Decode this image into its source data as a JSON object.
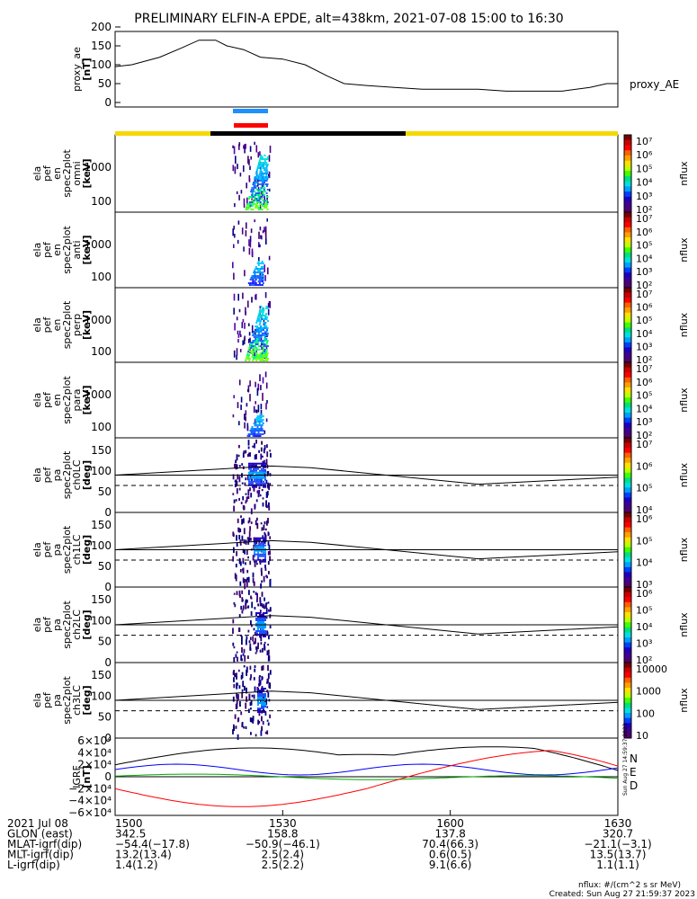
{
  "title": "PRELIMINARY ELFIN-A EPDE, alt=438km, 2021-07-08 15:00 to 16:30",
  "chart_data": [
    {
      "type": "line",
      "id": "proxy_ae",
      "ylabel": [
        "proxy_ae",
        "[nT]"
      ],
      "legend": "proxy_AE",
      "yticks": [
        "200",
        "150",
        "100",
        "50",
        "0"
      ],
      "ylim": [
        0,
        200
      ],
      "x_minutes": [
        0,
        3,
        8,
        12,
        15,
        18,
        20,
        23,
        26,
        30,
        34,
        38,
        41,
        45,
        50,
        55,
        60,
        65,
        70,
        75,
        80,
        85,
        88,
        90
      ],
      "values": [
        95,
        100,
        120,
        145,
        165,
        165,
        150,
        140,
        120,
        115,
        100,
        70,
        50,
        45,
        40,
        35,
        35,
        35,
        30,
        30,
        30,
        40,
        50,
        50
      ]
    },
    {
      "type": "heatmap",
      "id": "spec_omni",
      "ylabel": [
        "ela",
        "pef",
        "en",
        "spec2plot",
        "omni",
        "[keV]"
      ],
      "yticks": [
        "1000",
        "100"
      ],
      "cbar": {
        "label": "nflux",
        "ticks": [
          "10⁷",
          "10⁶",
          "10⁵",
          "10⁴",
          "10³",
          "10²"
        ]
      }
    },
    {
      "type": "heatmap",
      "id": "spec_anti",
      "ylabel": [
        "ela",
        "pef",
        "en",
        "spec2plot",
        "anti",
        "[keV]"
      ],
      "yticks": [
        "1000",
        "100"
      ],
      "cbar": {
        "label": "nflux",
        "ticks": [
          "10⁷",
          "10⁶",
          "10⁵",
          "10⁴",
          "10³",
          "10²"
        ]
      }
    },
    {
      "type": "heatmap",
      "id": "spec_perp",
      "ylabel": [
        "ela",
        "pef",
        "en",
        "spec2plot",
        "perp",
        "[keV]"
      ],
      "yticks": [
        "1000",
        "100"
      ],
      "cbar": {
        "label": "nflux",
        "ticks": [
          "10⁷",
          "10⁶",
          "10⁵",
          "10⁴",
          "10³",
          "10²"
        ]
      }
    },
    {
      "type": "heatmap",
      "id": "spec_para",
      "ylabel": [
        "ela",
        "pef",
        "en",
        "spec2plot",
        "para",
        "[keV]"
      ],
      "yticks": [
        "1000",
        "100"
      ],
      "cbar": {
        "label": "nflux",
        "ticks": [
          "10⁷",
          "10⁶",
          "10⁵",
          "10⁴",
          "10³",
          "10²"
        ]
      }
    },
    {
      "type": "heatmap",
      "id": "pa_ch0",
      "ylabel": [
        "ela",
        "pef",
        "pa",
        "spec2plot",
        "ch0LC",
        "[deg]"
      ],
      "yticks": [
        "150",
        "100",
        "50",
        "0"
      ],
      "ylim": [
        0,
        180
      ],
      "cbar": {
        "label": "nflux",
        "ticks": [
          "10⁷",
          "10⁶",
          "10⁵",
          "10⁴"
        ]
      }
    },
    {
      "type": "heatmap",
      "id": "pa_ch1",
      "ylabel": [
        "ela",
        "pef",
        "pa",
        "spec2plot",
        "ch1LC",
        "[deg]"
      ],
      "yticks": [
        "150",
        "100",
        "50",
        "0"
      ],
      "ylim": [
        0,
        180
      ],
      "cbar": {
        "label": "nflux",
        "ticks": [
          "10⁶",
          "10⁵",
          "10⁴",
          "10³"
        ]
      }
    },
    {
      "type": "heatmap",
      "id": "pa_ch2",
      "ylabel": [
        "ela",
        "pef",
        "pa",
        "spec2plot",
        "ch2LC",
        "[deg]"
      ],
      "yticks": [
        "150",
        "100",
        "50",
        "0"
      ],
      "ylim": [
        0,
        180
      ],
      "cbar": {
        "label": "nflux",
        "ticks": [
          "10⁶",
          "10⁵",
          "10⁴",
          "10³",
          "10²"
        ]
      }
    },
    {
      "type": "heatmap",
      "id": "pa_ch3",
      "ylabel": [
        "ela",
        "pef",
        "pa",
        "spec2plot",
        "ch3LC",
        "[deg]"
      ],
      "yticks": [
        "150",
        "100",
        "50",
        "0"
      ],
      "ylim": [
        0,
        180
      ],
      "cbar": {
        "label": "nflux",
        "ticks": [
          "10000",
          "1000",
          "100",
          "10"
        ]
      }
    },
    {
      "type": "line",
      "id": "igrf",
      "ylabel": [
        "IGRF",
        "[nT]"
      ],
      "yticks": [
        "6×10⁴",
        "4×10⁴",
        "2×10⁴",
        "0",
        "−2×10⁴",
        "−4×10⁴",
        "−6×10⁴"
      ],
      "ylim": [
        -60000,
        60000
      ],
      "series": [
        {
          "name": "N",
          "color": "#0000ff"
        },
        {
          "name": "E",
          "color": "#00aa00"
        },
        {
          "name": "D",
          "color": "#ff0000"
        }
      ]
    }
  ],
  "xaxis": {
    "tick_labels": [
      "1500",
      "1530",
      "1600",
      "1630"
    ],
    "rows": [
      {
        "label": "2021 Jul 08",
        "values": [
          "1500",
          "1530",
          "1600",
          "1630"
        ]
      },
      {
        "label": "GLON (east)",
        "values": [
          "342.5",
          "158.8",
          "137.8",
          "320.7"
        ]
      },
      {
        "label": "MLAT-igrf(dip)",
        "values": [
          "−54.4(−17.8)",
          "−50.9(−46.1)",
          "70.4(66.3)",
          "−21.1(−3.1)"
        ]
      },
      {
        "label": "MLT-igrf(dip)",
        "values": [
          "13.2(13.4)",
          "2.5(2.4)",
          "0.6(0.5)",
          "13.5(13.7)"
        ]
      },
      {
        "label": "L-igrf(dip)",
        "values": [
          "1.4(1.2)",
          "2.5(2.2)",
          "9.1(6.6)",
          "1.1(1.1)"
        ]
      }
    ]
  },
  "footer": {
    "units": "nflux: #/(cm^2 s sr MeV)",
    "created": "Created: Sun Aug 27 21:59:37 2023",
    "vertical_stamp": "Sun Aug 27 14:59:37 2023"
  },
  "colors": {
    "sunlit": "#f5d800",
    "shadow": "#000000",
    "blue_marker": "#1e8fff",
    "red_marker": "#ff0000"
  }
}
